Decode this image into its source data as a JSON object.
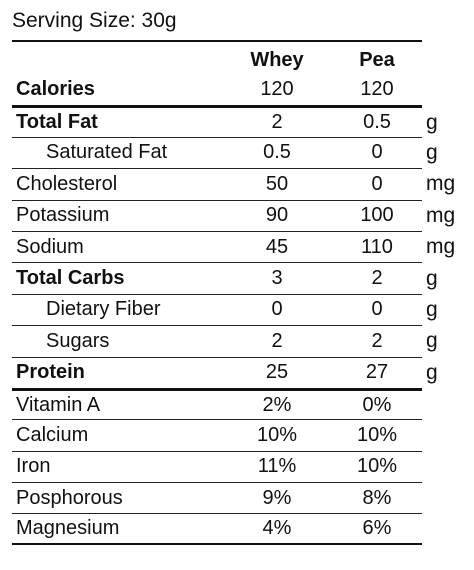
{
  "serving": "Serving Size: 30g",
  "columns": {
    "c1": "Whey",
    "c2": "Pea"
  },
  "rows": [
    {
      "label": "Calories",
      "v1": "120",
      "v2": "120",
      "unit": ""
    },
    {
      "label": "Total Fat",
      "v1": "2",
      "v2": "0.5",
      "unit": "g"
    },
    {
      "label": "Saturated Fat",
      "v1": "0.5",
      "v2": "0",
      "unit": "g"
    },
    {
      "label": "Cholesterol",
      "v1": "50",
      "v2": "0",
      "unit": "mg"
    },
    {
      "label": "Potassium",
      "v1": "90",
      "v2": "100",
      "unit": "mg"
    },
    {
      "label": "Sodium",
      "v1": "45",
      "v2": "110",
      "unit": "mg"
    },
    {
      "label": "Total Carbs",
      "v1": "3",
      "v2": "2",
      "unit": "g"
    },
    {
      "label": "Dietary Fiber",
      "v1": "0",
      "v2": "0",
      "unit": "g"
    },
    {
      "label": "Sugars",
      "v1": "2",
      "v2": "2",
      "unit": "g"
    },
    {
      "label": "Protein",
      "v1": "25",
      "v2": "27",
      "unit": "g"
    },
    {
      "label": "Vitamin A",
      "v1": "2%",
      "v2": "0%",
      "unit": ""
    },
    {
      "label": "Calcium",
      "v1": "10%",
      "v2": "10%",
      "unit": ""
    },
    {
      "label": "Iron",
      "v1": "11%",
      "v2": "10%",
      "unit": ""
    },
    {
      "label": "Posphorous",
      "v1": "9%",
      "v2": "8%",
      "unit": ""
    },
    {
      "label": "Magnesium",
      "v1": "4%",
      "v2": "6%",
      "unit": ""
    }
  ]
}
